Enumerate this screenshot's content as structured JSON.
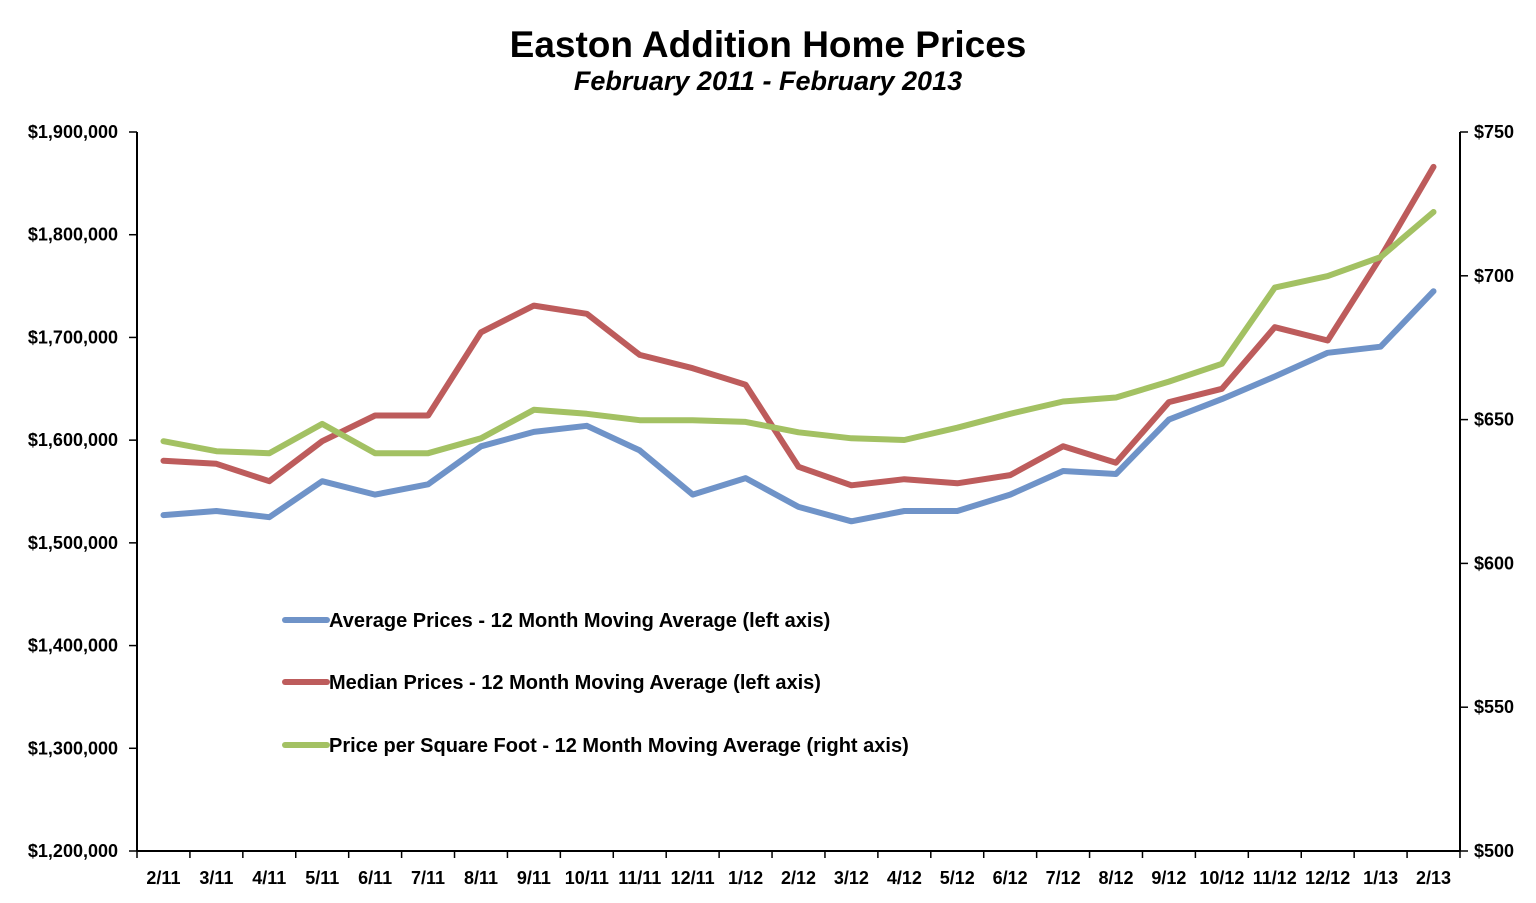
{
  "chart_data": {
    "type": "line",
    "title": "Easton Addition Home Prices",
    "subtitle": "February 2011 - February 2013",
    "categories": [
      "2/11",
      "3/11",
      "4/11",
      "5/11",
      "6/11",
      "7/11",
      "8/11",
      "9/11",
      "10/11",
      "11/11",
      "12/11",
      "1/12",
      "2/12",
      "3/12",
      "4/12",
      "5/12",
      "6/12",
      "7/12",
      "8/12",
      "9/12",
      "10/12",
      "11/12",
      "12/12",
      "1/13",
      "2/13"
    ],
    "y_left": {
      "ylim": [
        1200000,
        1900000
      ],
      "tick_values": [
        1200000,
        1300000,
        1400000,
        1500000,
        1600000,
        1700000,
        1800000,
        1900000
      ],
      "tick_labels": [
        "$1,200,000",
        "$1,300,000",
        "$1,400,000",
        "$1,500,000",
        "$1,600,000",
        "$1,700,000",
        "$1,800,000",
        "$1,900,000"
      ]
    },
    "y_right": {
      "ylim": [
        500,
        750
      ],
      "tick_values": [
        500,
        550,
        600,
        650,
        700,
        750
      ],
      "tick_labels": [
        "$500",
        "$550",
        "$600",
        "$650",
        "$700",
        "$750"
      ]
    },
    "series": [
      {
        "name": "Average Prices - 12 Month Moving Average (left axis)",
        "axis": "left",
        "color": "#6f93c8",
        "values": [
          1527000,
          1531000,
          1525000,
          1560000,
          1547000,
          1557000,
          1594000,
          1608000,
          1614000,
          1590000,
          1547000,
          1563000,
          1535000,
          1521000,
          1531000,
          1531000,
          1547000,
          1570000,
          1567000,
          1620000,
          1640000,
          1662000,
          1685000,
          1691000,
          1745000
        ]
      },
      {
        "name": "Median Prices - 12 Month Moving Average (left axis)",
        "axis": "left",
        "color": "#bd5c5c",
        "values": [
          1580000,
          1577000,
          1560000,
          1599000,
          1624000,
          1624000,
          1705000,
          1731000,
          1723000,
          1683000,
          1670000,
          1654000,
          1574000,
          1556000,
          1562000,
          1558000,
          1566000,
          1594000,
          1578000,
          1637000,
          1650000,
          1710000,
          1697000,
          1778000,
          1866000
        ]
      },
      {
        "name": "Price per Square Foot - 12 Month Moving Average (right axis)",
        "axis": "right",
        "color": "#a3c163",
        "values": [
          642.5,
          639,
          638.3,
          648.5,
          638.3,
          638.3,
          643.5,
          653.4,
          652,
          649.8,
          649.8,
          649.2,
          645.6,
          643.5,
          642.9,
          647.2,
          652,
          656.3,
          657.7,
          663.2,
          669.4,
          695.9,
          699.9,
          706.5,
          722.2
        ]
      }
    ],
    "legend_position": "center-left",
    "grid": false
  }
}
